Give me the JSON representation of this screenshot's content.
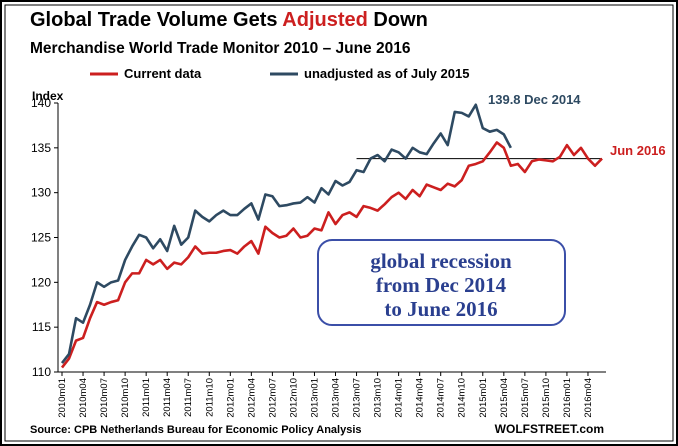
{
  "chart_data": {
    "type": "line",
    "title": [
      {
        "text": "Global Trade Volume Gets ",
        "color": "#000000"
      },
      {
        "text": "Adjusted",
        "color": "#cc1f1f"
      },
      {
        "text": " Down",
        "color": "#000000"
      }
    ],
    "subtitle": "Merchandise World Trade Monitor 2010 – June 2016",
    "y_label": "Index",
    "categories": [
      "2010m01",
      null,
      null,
      "2010m04",
      null,
      null,
      "2010m07",
      null,
      null,
      "2010m10",
      null,
      null,
      "2011m01",
      null,
      null,
      "2011m04",
      null,
      null,
      "2011m07",
      null,
      null,
      "2011m10",
      null,
      null,
      "2012m01",
      null,
      null,
      "2012m04",
      null,
      null,
      "2012m07",
      null,
      null,
      "2012m10",
      null,
      null,
      "2013m01",
      null,
      null,
      "2013m04",
      null,
      null,
      "2013m07",
      null,
      null,
      "2013m10",
      null,
      null,
      "2014m01",
      null,
      null,
      "2014m04",
      null,
      null,
      "2014m07",
      null,
      null,
      "2014m10",
      null,
      null,
      "2015m01",
      null,
      null,
      "2015m04",
      null,
      null,
      "2015m07",
      null,
      null,
      "2015m10",
      null,
      null,
      "2016m01",
      null,
      null,
      "2016m04",
      null,
      null
    ],
    "series": [
      {
        "name": "Current data",
        "color": "#cc1f1f",
        "values": [
          110.5,
          111.5,
          113.5,
          113.8,
          116,
          117.8,
          117.5,
          117.8,
          118,
          120,
          121,
          121,
          122.5,
          122,
          122.5,
          121.5,
          122.2,
          122,
          122.8,
          124,
          123.2,
          123.3,
          123.3,
          123.5,
          123.6,
          123.2,
          124,
          124.6,
          123.2,
          126.2,
          125.5,
          125,
          125.2,
          126,
          125,
          125.2,
          126,
          125.8,
          127.8,
          126.5,
          127.5,
          127.8,
          127.3,
          128.5,
          128.3,
          128,
          128.7,
          129.5,
          130,
          129.3,
          130.3,
          129.6,
          130.9,
          130.6,
          130.3,
          131,
          130.7,
          131.4,
          133,
          133.2,
          133.5,
          134.5,
          135.6,
          135,
          133,
          133.2,
          132.3,
          133.5,
          133.7,
          133.6,
          133.5,
          134,
          135.3,
          134.2,
          135,
          133.8,
          133,
          133.8
        ]
      },
      {
        "name": "unadjusted as of July 2015",
        "color": "#2e4a62",
        "values": [
          111,
          112,
          116,
          115.5,
          117.5,
          120,
          119.5,
          120,
          120.2,
          122.5,
          124,
          125.3,
          125,
          123.8,
          124.8,
          123.5,
          126.3,
          124.2,
          125,
          128,
          127.3,
          126.8,
          127.5,
          128,
          127.5,
          127.5,
          128.2,
          128.8,
          127,
          129.8,
          129.6,
          128.5,
          128.6,
          128.8,
          128.9,
          129.5,
          128.9,
          130.5,
          129.8,
          131.3,
          130.8,
          131.2,
          132.5,
          132.3,
          133.8,
          134.2,
          133.5,
          134.8,
          134.5,
          133.8,
          135,
          134.5,
          134.3,
          135.5,
          136.6,
          135.3,
          139,
          138.9,
          138.5,
          139.8,
          137.2,
          136.8,
          137,
          136.5,
          135,
          null,
          null,
          null,
          null,
          null,
          null,
          null,
          null,
          null,
          null,
          null,
          null,
          null
        ]
      }
    ],
    "ylim": [
      110,
      140
    ],
    "yticks": [
      110,
      115,
      120,
      125,
      130,
      135,
      140
    ],
    "reference_line": 133.8,
    "annotations": [
      {
        "text": "139.8 Dec 2014",
        "color": "#2e4a62"
      },
      {
        "text": "Jun 2016",
        "color": "#cc1f1f"
      }
    ],
    "box_text": [
      "global recession",
      "from Dec 2014",
      "to June 2016"
    ],
    "source": "Source: CPB Netherlands Bureau for Economic Policy Analysis",
    "credit": "WOLFSTREET.com"
  }
}
